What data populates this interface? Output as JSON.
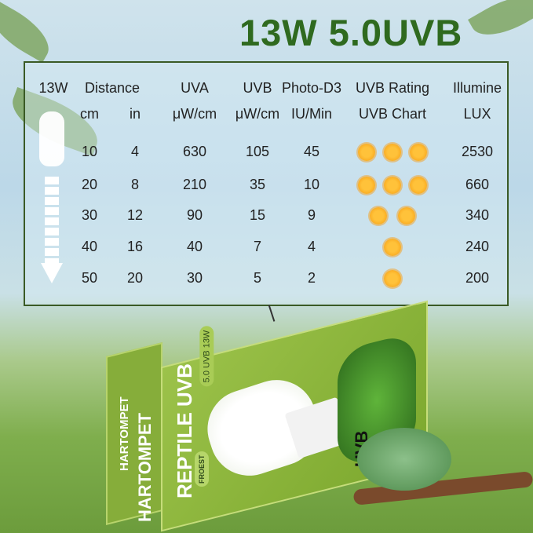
{
  "title": "13W 5.0UVB",
  "table": {
    "headers_row1": [
      "13W",
      "Distance",
      "UVA",
      "UVB",
      "Photo-D3",
      "UVB Rating",
      "Illumine"
    ],
    "headers_row2": [
      "cm",
      "in",
      "μW/cm",
      "μW/cm",
      "IU/Min",
      "UVB Chart",
      "LUX"
    ],
    "rows": [
      {
        "cm": "10",
        "in": "4",
        "uva": "630",
        "uvb": "105",
        "d3": "45",
        "rating": 3,
        "lux": "2530"
      },
      {
        "cm": "20",
        "in": "8",
        "uva": "210",
        "uvb": "35",
        "d3": "10",
        "rating": 3,
        "lux": "660"
      },
      {
        "cm": "30",
        "in": "12",
        "uva": "90",
        "uvb": "15",
        "d3": "9",
        "rating": 2,
        "lux": "340"
      },
      {
        "cm": "40",
        "in": "16",
        "uva": "40",
        "uvb": "7",
        "d3": "4",
        "rating": 1,
        "lux": "240"
      },
      {
        "cm": "50",
        "in": "20",
        "uva": "30",
        "uvb": "5",
        "d3": "2",
        "rating": 1,
        "lux": "200"
      }
    ]
  },
  "box": {
    "brand_side": "HARTOMPET",
    "brand": "HARTOMPET",
    "product": "REPTILE UVB",
    "badge": "5.0 UVB 13W",
    "uvb_label": "UVB",
    "logo": "FROEST"
  },
  "colors": {
    "title": "#2f6a1f",
    "sun": "#f9a91e",
    "box": "#8db63c"
  }
}
